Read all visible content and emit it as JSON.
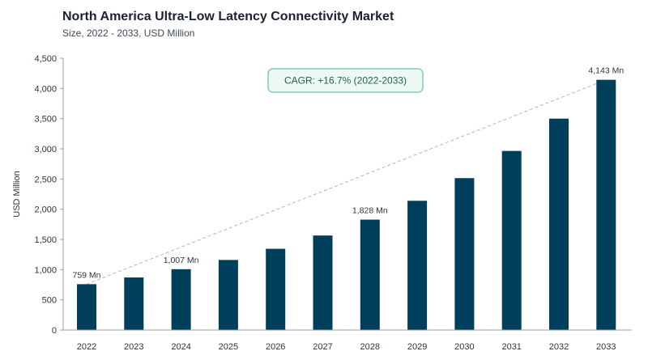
{
  "title": "North America Ultra-Low Latency Connectivity Market",
  "subtitle": "Size, 2022 - 2033, USD Million",
  "colors": {
    "bar": "#003f5c",
    "trend": "#b5b5b5",
    "cagr_border": "#7fcdb5",
    "cagr_fill": "#eef9f5",
    "cagr_text": "#1f5f52"
  },
  "annotation": {
    "cagr_label": "CAGR: +16.7% (2022-2033)"
  },
  "chart_data": {
    "type": "bar",
    "title": "North America Ultra-Low Latency Connectivity Market",
    "subtitle": "Size, 2022 - 2033, USD Million",
    "xlabel": "",
    "ylabel": "USD Million",
    "ylim": [
      0,
      4500
    ],
    "yticks": [
      0,
      500,
      1000,
      1500,
      2000,
      2500,
      3000,
      3500,
      4000,
      4500
    ],
    "ytick_labels": [
      "0",
      "500",
      "1,000",
      "1,500",
      "2,000",
      "2,500",
      "3,000",
      "3,500",
      "4,000",
      "4,500"
    ],
    "categories": [
      "2022",
      "2023",
      "2024",
      "2025",
      "2026",
      "2027",
      "2028",
      "2029",
      "2030",
      "2031",
      "2032",
      "2033"
    ],
    "values": [
      759,
      870,
      1007,
      1160,
      1345,
      1565,
      1828,
      2140,
      2515,
      2965,
      3500,
      4143
    ],
    "data_labels": [
      {
        "category": "2022",
        "text": "759 Mn"
      },
      {
        "category": "2024",
        "text": "1,007 Mn"
      },
      {
        "category": "2028",
        "text": "1,828 Mn"
      },
      {
        "category": "2033",
        "text": "4,143 Mn"
      }
    ],
    "trend_line": {
      "from": "2022",
      "to": "2033",
      "style": "dashed"
    },
    "grid": false,
    "legend": "none"
  }
}
